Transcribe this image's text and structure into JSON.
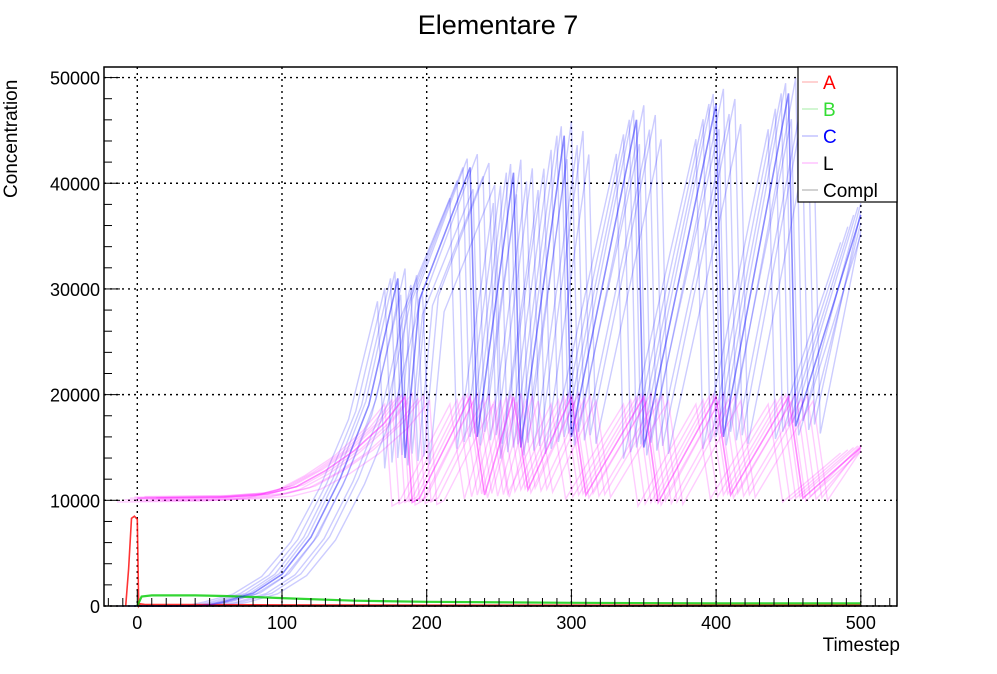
{
  "chart_data": {
    "type": "line",
    "title": "Elementare 7",
    "xlabel": "Timestep",
    "ylabel": "Concentration",
    "xlim": [
      -23,
      525
    ],
    "ylim": [
      0,
      51000
    ],
    "x_ticks": [
      0,
      100,
      200,
      300,
      400,
      500
    ],
    "y_ticks": [
      0,
      10000,
      20000,
      30000,
      40000,
      50000
    ],
    "x_tick_labels": [
      "0",
      "100",
      "200",
      "300",
      "400",
      "500"
    ],
    "y_tick_labels": [
      "0",
      "10000",
      "20000",
      "30000",
      "40000",
      "50000"
    ],
    "grid": true,
    "legend_position": "top-right",
    "series": [
      {
        "name": "A",
        "color": "#ff0000",
        "x": [
          -8,
          -6,
          -4,
          -2,
          0,
          1,
          2,
          5,
          100,
          200,
          300,
          400,
          500
        ],
        "y": [
          0,
          3500,
          8300,
          8500,
          8200,
          0,
          200,
          150,
          100,
          80,
          80,
          80,
          80
        ]
      },
      {
        "name": "B",
        "color": "#00cc00",
        "x": [
          0,
          3,
          10,
          40,
          60,
          80,
          100,
          150,
          200,
          300,
          400,
          500
        ],
        "y": [
          0,
          900,
          1000,
          1000,
          950,
          850,
          750,
          500,
          400,
          300,
          250,
          250
        ]
      },
      {
        "name": "C",
        "color": "#0000ff",
        "x": [
          0,
          40,
          50,
          60,
          80,
          100,
          120,
          140,
          160,
          180,
          185,
          195,
          230,
          235,
          260,
          265,
          295,
          300,
          345,
          350,
          400,
          405,
          450,
          455,
          500
        ],
        "y": [
          0,
          0,
          100,
          400,
          1200,
          3000,
          6500,
          12000,
          19000,
          31000,
          14000,
          29000,
          41500,
          16000,
          41000,
          15000,
          44500,
          16000,
          46000,
          15000,
          47500,
          16000,
          48500,
          17000,
          37000
        ]
      },
      {
        "name": "L",
        "color": "#ff00ff",
        "x": [
          0,
          60,
          90,
          110,
          130,
          150,
          170,
          185,
          190,
          195,
          230,
          240,
          260,
          270,
          300,
          310,
          350,
          360,
          400,
          410,
          450,
          460,
          500
        ],
        "y": [
          10200,
          10300,
          10600,
          11300,
          12800,
          14700,
          17200,
          19800,
          9800,
          10200,
          19800,
          10500,
          19800,
          11000,
          19800,
          10500,
          19800,
          9800,
          19800,
          10500,
          19800,
          10200,
          15000
        ]
      },
      {
        "name": "Compl",
        "color": "#000000",
        "x": [
          0,
          100,
          200,
          300,
          400,
          500
        ],
        "y": [
          0,
          0,
          0,
          0,
          0,
          0
        ]
      }
    ]
  }
}
